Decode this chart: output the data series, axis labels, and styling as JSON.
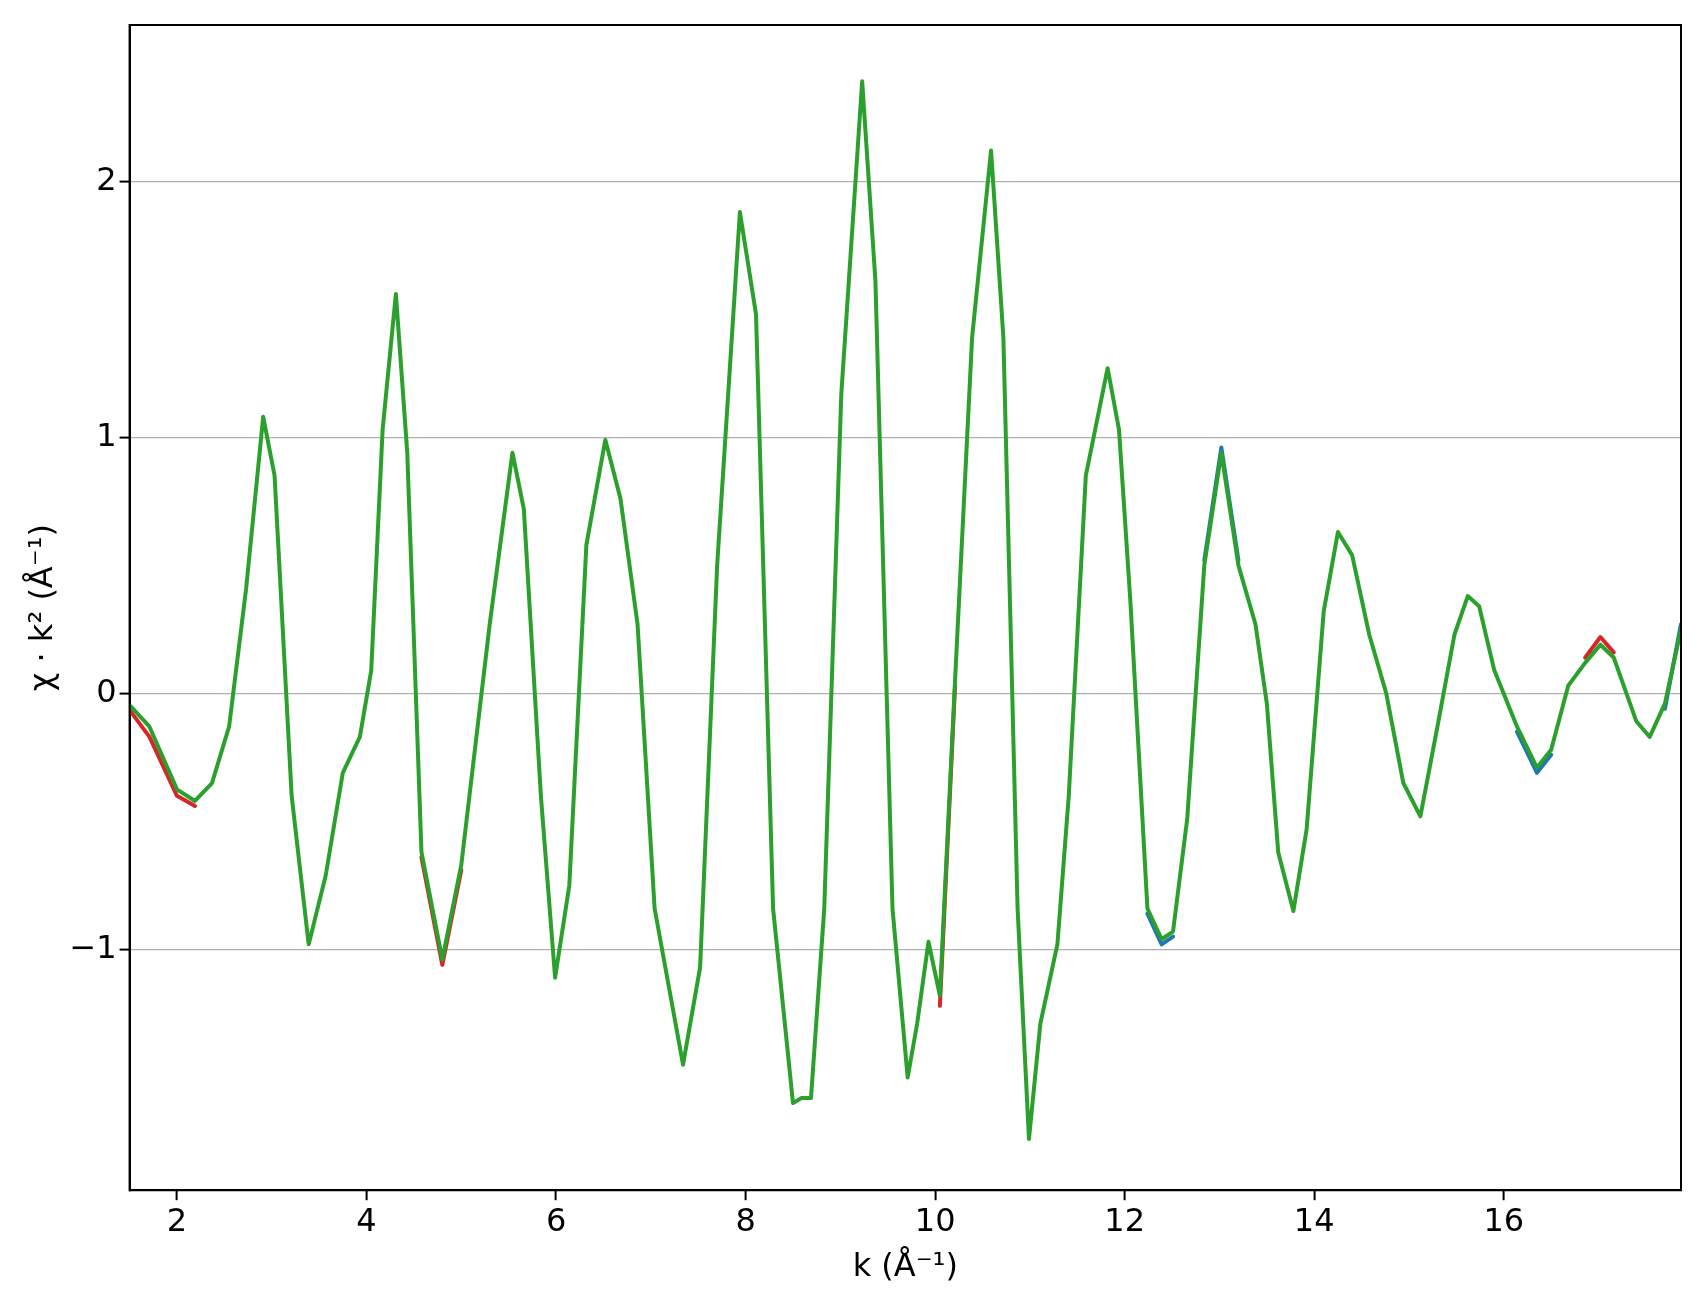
{
  "chart_data": {
    "type": "line",
    "xlabel": "k (Å⁻¹)",
    "ylabel": "χ · k² (Å⁻¹)",
    "x": [
      1.51,
      1.71,
      2.0,
      2.19,
      2.37,
      2.55,
      2.73,
      2.91,
      3.03,
      3.21,
      3.39,
      3.57,
      3.75,
      3.93,
      4.05,
      4.17,
      4.31,
      4.43,
      4.58,
      4.8,
      5.0,
      5.3,
      5.54,
      5.66,
      5.84,
      5.99,
      6.14,
      6.32,
      6.52,
      6.68,
      6.86,
      7.04,
      7.34,
      7.52,
      7.7,
      7.94,
      8.11,
      8.29,
      8.5,
      8.59,
      8.69,
      8.83,
      9.01,
      9.23,
      9.37,
      9.55,
      9.71,
      9.81,
      9.93,
      10.05,
      10.21,
      10.39,
      10.59,
      10.72,
      10.87,
      10.99,
      11.11,
      11.29,
      11.41,
      11.59,
      11.82,
      11.94,
      12.06,
      12.24,
      12.39,
      12.51,
      12.66,
      12.84,
      13.02,
      13.2,
      13.38,
      13.5,
      13.62,
      13.78,
      13.92,
      14.1,
      14.25,
      14.4,
      14.58,
      14.76,
      14.94,
      15.12,
      15.3,
      15.48,
      15.62,
      15.74,
      15.9,
      16.14,
      16.35,
      16.5,
      16.68,
      16.86,
      17.02,
      17.16,
      17.4,
      17.54,
      17.7,
      17.87
    ],
    "series": [
      {
        "color": "#d62728",
        "values": [
          -0.07,
          -0.17,
          -0.4,
          -0.44,
          null,
          null,
          null,
          null,
          null,
          null,
          null,
          null,
          null,
          null,
          null,
          null,
          null,
          null,
          -0.64,
          -1.06,
          -0.69,
          null,
          null,
          null,
          null,
          null,
          null,
          null,
          null,
          null,
          null,
          null,
          null,
          null,
          null,
          null,
          null,
          null,
          null,
          null,
          null,
          null,
          null,
          null,
          null,
          null,
          null,
          null,
          null,
          -1.22,
          0.03,
          null,
          null,
          null,
          null,
          null,
          null,
          null,
          null,
          null,
          null,
          null,
          null,
          null,
          null,
          null,
          null,
          null,
          null,
          null,
          null,
          null,
          null,
          null,
          null,
          null,
          null,
          null,
          null,
          null,
          null,
          null,
          null,
          null,
          null,
          null,
          null,
          null,
          null,
          null,
          null,
          0.14,
          0.22,
          0.16,
          null,
          null,
          null,
          null
        ]
      },
      {
        "color": "#1f77b4",
        "values": [
          null,
          null,
          null,
          null,
          null,
          null,
          null,
          null,
          null,
          null,
          null,
          null,
          null,
          null,
          null,
          null,
          null,
          null,
          null,
          null,
          null,
          null,
          null,
          null,
          null,
          null,
          null,
          null,
          null,
          null,
          null,
          null,
          null,
          null,
          null,
          null,
          null,
          null,
          null,
          null,
          null,
          null,
          null,
          null,
          null,
          null,
          null,
          null,
          null,
          null,
          null,
          null,
          null,
          null,
          null,
          null,
          null,
          null,
          null,
          null,
          null,
          null,
          null,
          -0.86,
          -0.98,
          -0.95,
          null,
          0.52,
          0.96,
          0.52,
          null,
          null,
          null,
          null,
          null,
          null,
          null,
          null,
          null,
          null,
          null,
          null,
          null,
          null,
          null,
          null,
          null,
          -0.15,
          -0.31,
          -0.24,
          null,
          null,
          null,
          null,
          null,
          null,
          -0.06,
          0.27
        ]
      },
      {
        "color": "#2ca02c",
        "values": [
          -0.05,
          -0.13,
          -0.375,
          -0.42,
          -0.35,
          -0.13,
          0.41,
          1.08,
          0.85,
          -0.4,
          -0.98,
          -0.71,
          -0.31,
          -0.17,
          0.09,
          1.03,
          1.56,
          0.94,
          -0.62,
          -1.04,
          -0.67,
          0.27,
          0.94,
          0.72,
          -0.4,
          -1.11,
          -0.75,
          0.58,
          0.99,
          0.76,
          0.27,
          -0.84,
          -1.45,
          -1.07,
          0.5,
          1.88,
          1.48,
          -0.84,
          -1.6,
          -1.58,
          -1.58,
          -0.84,
          1.17,
          2.39,
          1.61,
          -0.84,
          -1.5,
          -1.29,
          -0.97,
          -1.18,
          0.05,
          1.39,
          2.12,
          1.39,
          -0.84,
          -1.74,
          -1.29,
          -0.98,
          -0.4,
          0.85,
          1.27,
          1.03,
          0.36,
          -0.84,
          -0.96,
          -0.93,
          -0.49,
          0.5,
          0.94,
          0.5,
          0.27,
          -0.04,
          -0.62,
          -0.85,
          -0.53,
          0.32,
          0.63,
          0.54,
          0.23,
          0.0,
          -0.35,
          -0.48,
          -0.13,
          0.23,
          0.38,
          0.34,
          0.09,
          -0.13,
          -0.29,
          -0.22,
          0.03,
          0.12,
          0.19,
          0.14,
          -0.11,
          -0.17,
          -0.04,
          0.25
        ]
      }
    ],
    "xlim": [
      1.5,
      17.87
    ],
    "ylim": [
      -1.94,
      2.61
    ],
    "xticks": [
      2,
      4,
      6,
      8,
      10,
      12,
      14,
      16
    ],
    "yticks": [
      {
        "value": -1,
        "label": "−1"
      },
      0,
      1,
      2
    ],
    "grid": "y",
    "legend": false,
    "marker": "none",
    "line_style": "solid"
  }
}
